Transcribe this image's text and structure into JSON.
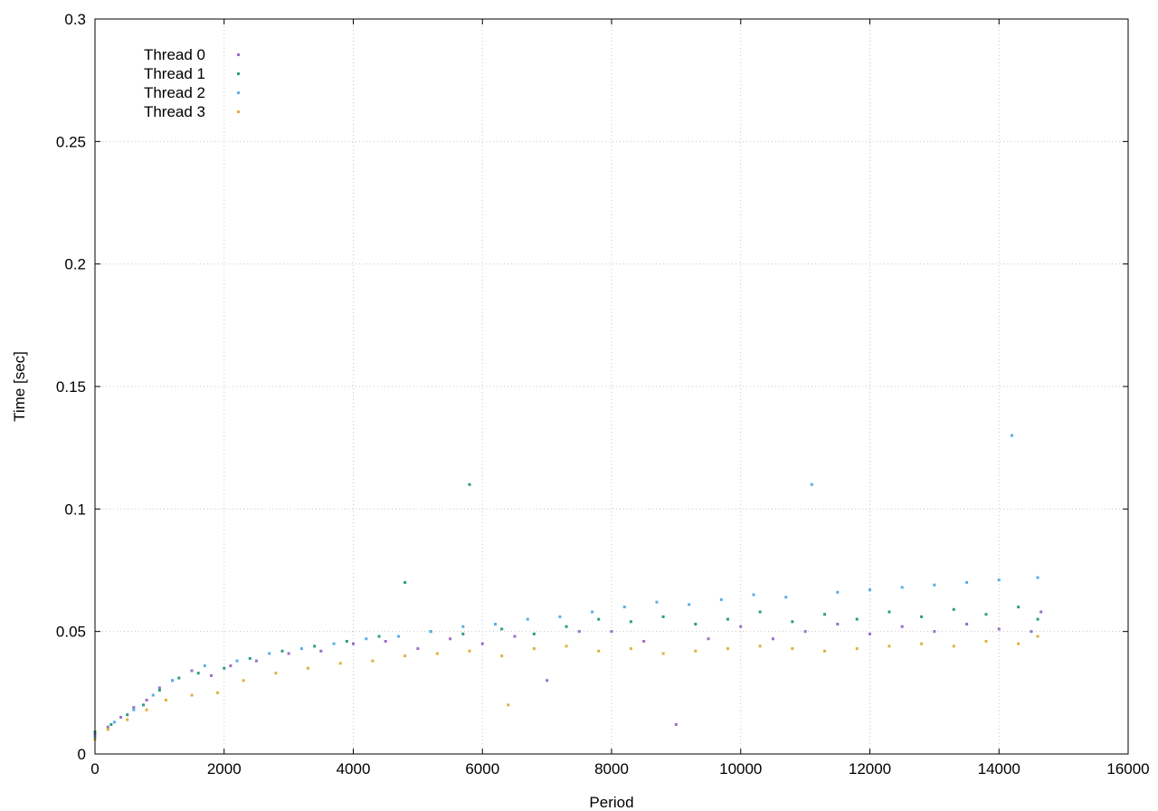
{
  "chart_data": {
    "type": "scatter",
    "title": "",
    "xlabel": "Period",
    "ylabel": "Time [sec]",
    "xlim": [
      0,
      16000
    ],
    "ylim": [
      0,
      0.3
    ],
    "x_ticks": [
      "0",
      "2000",
      "4000",
      "6000",
      "8000",
      "10000",
      "12000",
      "14000",
      "16000"
    ],
    "y_ticks": [
      "0",
      "0.05",
      "0.1",
      "0.15",
      "0.2",
      "0.25",
      "0.3"
    ],
    "x_tick_values": [
      0,
      2000,
      4000,
      6000,
      8000,
      10000,
      12000,
      14000,
      16000
    ],
    "y_tick_values": [
      0,
      0.05,
      0.1,
      0.15,
      0.2,
      0.25,
      0.3
    ],
    "grid": true,
    "legend_position": "top-left",
    "series": [
      {
        "name": "Thread 0",
        "color": "#9a6fc9",
        "points": [
          [
            0,
            0.008
          ],
          [
            200,
            0.011
          ],
          [
            400,
            0.015
          ],
          [
            600,
            0.019
          ],
          [
            800,
            0.022
          ],
          [
            1000,
            0.027
          ],
          [
            1200,
            0.03
          ],
          [
            1500,
            0.034
          ],
          [
            1800,
            0.032
          ],
          [
            2100,
            0.036
          ],
          [
            2500,
            0.038
          ],
          [
            3000,
            0.041
          ],
          [
            3500,
            0.042
          ],
          [
            4000,
            0.045
          ],
          [
            4500,
            0.046
          ],
          [
            5000,
            0.043
          ],
          [
            5500,
            0.047
          ],
          [
            6000,
            0.045
          ],
          [
            6500,
            0.048
          ],
          [
            7000,
            0.03
          ],
          [
            7500,
            0.05
          ],
          [
            8000,
            0.05
          ],
          [
            8500,
            0.046
          ],
          [
            9000,
            0.012
          ],
          [
            9500,
            0.047
          ],
          [
            10000,
            0.052
          ],
          [
            10500,
            0.047
          ],
          [
            11000,
            0.05
          ],
          [
            11500,
            0.053
          ],
          [
            12000,
            0.049
          ],
          [
            12500,
            0.052
          ],
          [
            13000,
            0.05
          ],
          [
            13500,
            0.053
          ],
          [
            14000,
            0.051
          ],
          [
            14500,
            0.05
          ],
          [
            14650,
            0.058
          ]
        ]
      },
      {
        "name": "Thread 1",
        "color": "#2a9e7e",
        "points": [
          [
            0,
            0.009
          ],
          [
            250,
            0.012
          ],
          [
            500,
            0.016
          ],
          [
            750,
            0.02
          ],
          [
            1000,
            0.026
          ],
          [
            1300,
            0.031
          ],
          [
            1600,
            0.033
          ],
          [
            2000,
            0.035
          ],
          [
            2400,
            0.039
          ],
          [
            2900,
            0.042
          ],
          [
            3400,
            0.044
          ],
          [
            3900,
            0.046
          ],
          [
            4400,
            0.048
          ],
          [
            4800,
            0.07
          ],
          [
            5200,
            0.05
          ],
          [
            5700,
            0.049
          ],
          [
            5800,
            0.11
          ],
          [
            6300,
            0.051
          ],
          [
            6800,
            0.049
          ],
          [
            7300,
            0.052
          ],
          [
            7800,
            0.055
          ],
          [
            8300,
            0.054
          ],
          [
            8800,
            0.056
          ],
          [
            9300,
            0.053
          ],
          [
            9800,
            0.055
          ],
          [
            10300,
            0.058
          ],
          [
            10800,
            0.054
          ],
          [
            11300,
            0.057
          ],
          [
            11800,
            0.055
          ],
          [
            12300,
            0.058
          ],
          [
            12800,
            0.056
          ],
          [
            13300,
            0.059
          ],
          [
            13800,
            0.057
          ],
          [
            14300,
            0.06
          ],
          [
            14600,
            0.055
          ]
        ]
      },
      {
        "name": "Thread 2",
        "color": "#5aaee8",
        "points": [
          [
            0,
            0.007
          ],
          [
            300,
            0.013
          ],
          [
            600,
            0.018
          ],
          [
            900,
            0.024
          ],
          [
            1200,
            0.03
          ],
          [
            1700,
            0.036
          ],
          [
            2200,
            0.038
          ],
          [
            2700,
            0.041
          ],
          [
            3200,
            0.043
          ],
          [
            3700,
            0.045
          ],
          [
            4200,
            0.047
          ],
          [
            4700,
            0.048
          ],
          [
            5200,
            0.05
          ],
          [
            5700,
            0.052
          ],
          [
            6200,
            0.053
          ],
          [
            6700,
            0.055
          ],
          [
            7200,
            0.056
          ],
          [
            7700,
            0.058
          ],
          [
            8200,
            0.06
          ],
          [
            8700,
            0.062
          ],
          [
            9200,
            0.061
          ],
          [
            9700,
            0.063
          ],
          [
            10200,
            0.065
          ],
          [
            10700,
            0.064
          ],
          [
            11100,
            0.11
          ],
          [
            11500,
            0.066
          ],
          [
            12000,
            0.067
          ],
          [
            12500,
            0.068
          ],
          [
            13000,
            0.069
          ],
          [
            13500,
            0.07
          ],
          [
            14000,
            0.071
          ],
          [
            14200,
            0.13
          ],
          [
            14600,
            0.072
          ]
        ]
      },
      {
        "name": "Thread 3",
        "color": "#e0b040",
        "points": [
          [
            0,
            0.006
          ],
          [
            200,
            0.01
          ],
          [
            500,
            0.014
          ],
          [
            800,
            0.018
          ],
          [
            1100,
            0.022
          ],
          [
            1500,
            0.024
          ],
          [
            1900,
            0.025
          ],
          [
            2300,
            0.03
          ],
          [
            2800,
            0.033
          ],
          [
            3300,
            0.035
          ],
          [
            3800,
            0.037
          ],
          [
            4300,
            0.038
          ],
          [
            4800,
            0.04
          ],
          [
            5300,
            0.041
          ],
          [
            5800,
            0.042
          ],
          [
            6300,
            0.04
          ],
          [
            6400,
            0.02
          ],
          [
            6800,
            0.043
          ],
          [
            7300,
            0.044
          ],
          [
            7800,
            0.042
          ],
          [
            8300,
            0.043
          ],
          [
            8800,
            0.041
          ],
          [
            9300,
            0.042
          ],
          [
            9800,
            0.043
          ],
          [
            10300,
            0.044
          ],
          [
            10800,
            0.043
          ],
          [
            11300,
            0.042
          ],
          [
            11800,
            0.043
          ],
          [
            12300,
            0.044
          ],
          [
            12800,
            0.045
          ],
          [
            13300,
            0.044
          ],
          [
            13800,
            0.046
          ],
          [
            14300,
            0.045
          ],
          [
            14600,
            0.048
          ]
        ]
      }
    ]
  }
}
